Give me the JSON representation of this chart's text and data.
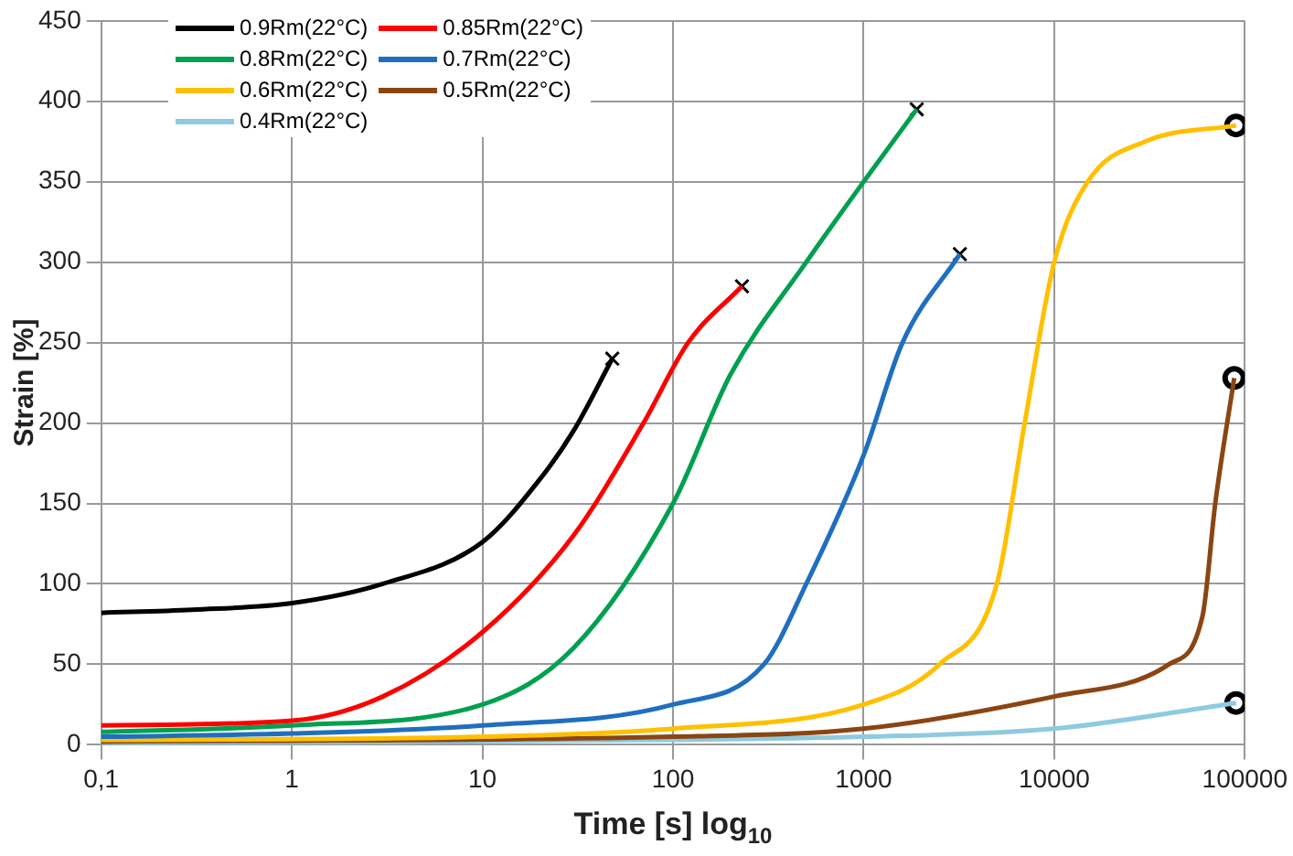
{
  "chart_data": {
    "type": "line",
    "xlabel": "Time [s] log$_{10}$",
    "ylabel": "Strain [%]",
    "log": "x",
    "xlim": [
      0.1,
      100000
    ],
    "xticks": [
      {
        "value": 0.1,
        "label": "0,1"
      },
      1,
      10,
      100,
      1000,
      10000,
      100000
    ],
    "ylim": [
      0,
      450
    ],
    "yticks": [
      0,
      50,
      100,
      150,
      200,
      250,
      300,
      350,
      400,
      450
    ],
    "grid": true,
    "legend": "top left",
    "line_style": "solid",
    "series": [
      {
        "name": "0.9Rm(22°C)",
        "color": "#000000",
        "x": [
          0.1,
          0.3,
          1,
          3,
          10,
          20,
          30,
          48
        ],
        "values": [
          82,
          84,
          88,
          100,
          126,
          165,
          195,
          240
        ]
      },
      {
        "name": "0.85Rm(22°C)",
        "color": "#ff0000",
        "x": [
          0.1,
          1,
          3,
          10,
          30,
          70,
          120,
          230
        ],
        "values": [
          12,
          15,
          30,
          70,
          130,
          200,
          250,
          285
        ]
      },
      {
        "name": "0.8Rm(22°C)",
        "color": "#00a050",
        "x": [
          0.1,
          1,
          10,
          30,
          100,
          200,
          500,
          1000,
          1900
        ],
        "values": [
          8,
          12,
          25,
          60,
          150,
          230,
          300,
          350,
          395
        ]
      },
      {
        "name": "0.7Rm(22°C)",
        "color": "#1f6fc0",
        "x": [
          0.1,
          1,
          10,
          100,
          300,
          500,
          1000,
          1600,
          3200
        ],
        "values": [
          5,
          7,
          12,
          25,
          50,
          100,
          180,
          250,
          305
        ]
      },
      {
        "name": "0.6Rm(22°C)",
        "color": "#ffc000",
        "x": [
          0.1,
          10,
          100,
          1000,
          2500,
          5000,
          7000,
          10000,
          15000,
          30000,
          90000
        ],
        "values": [
          3,
          5,
          10,
          25,
          50,
          100,
          200,
          300,
          350,
          375,
          385
        ]
      },
      {
        "name": "0.5Rm(22°C)",
        "color": "#8b4513",
        "x": [
          0.1,
          100,
          1000,
          10000,
          40000,
          60000,
          70000,
          88000
        ],
        "values": [
          2,
          5,
          10,
          30,
          50,
          80,
          150,
          228
        ]
      },
      {
        "name": "0.4Rm(22°C)",
        "color": "#8ecae0",
        "x": [
          0.1,
          100,
          1000,
          10000,
          90000
        ],
        "values": [
          1,
          3,
          5,
          10,
          26
        ]
      },
      {
        "type": "scatter",
        "color": "#000000",
        "marker": "cross",
        "x": [
          48,
          230,
          1900,
          3200
        ],
        "values": [
          240,
          285,
          395,
          305
        ]
      },
      {
        "type": "scatter",
        "color": "#000000",
        "marker": "circle",
        "x": [
          90000,
          88000,
          90000
        ],
        "values": [
          385,
          228,
          26
        ]
      }
    ]
  }
}
